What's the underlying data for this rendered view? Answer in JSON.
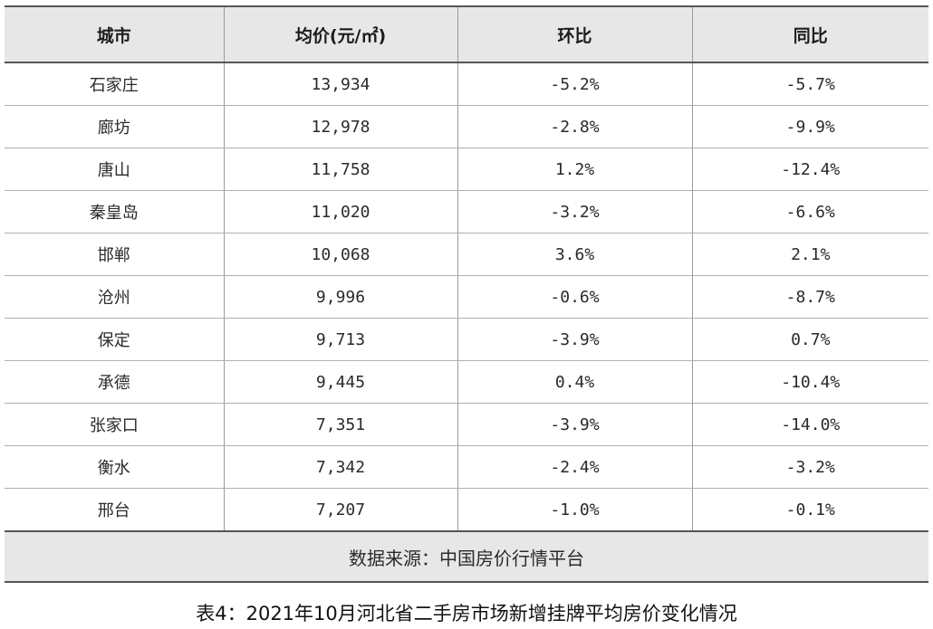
{
  "table": {
    "headers": [
      "城市",
      "均价(元/㎡)",
      "环比",
      "同比"
    ],
    "rows": [
      [
        "石家庄",
        "13,934",
        "-5.2%",
        "-5.7%"
      ],
      [
        "廊坊",
        "12,978",
        "-2.8%",
        "-9.9%"
      ],
      [
        "唐山",
        "11,758",
        "1.2%",
        "-12.4%"
      ],
      [
        "秦皇岛",
        "11,020",
        "-3.2%",
        "-6.6%"
      ],
      [
        "邯郸",
        "10,068",
        "3.6%",
        "2.1%"
      ],
      [
        "沧州",
        "9,996",
        "-0.6%",
        "-8.7%"
      ],
      [
        "保定",
        "9,713",
        "-3.9%",
        "0.7%"
      ],
      [
        "承德",
        "9,445",
        "0.4%",
        "-10.4%"
      ],
      [
        "张家口",
        "7,351",
        "-3.9%",
        "-14.0%"
      ],
      [
        "衡水",
        "7,342",
        "-2.4%",
        "-3.2%"
      ],
      [
        "邢台",
        "7,207",
        "-1.0%",
        "-0.1%"
      ]
    ],
    "source": "数据来源：中国房价行情平台"
  },
  "caption": "表4：2021年10月河北省二手房市场新增挂牌平均房价变化情况"
}
